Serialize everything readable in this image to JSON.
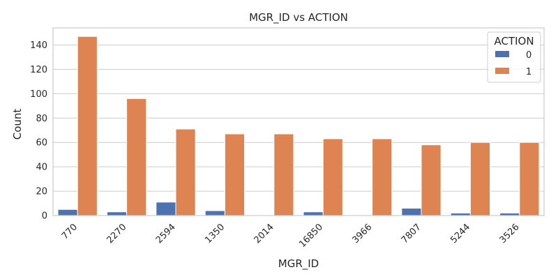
{
  "chart_data": {
    "type": "bar",
    "title": "MGR_ID vs ACTION",
    "xlabel": "MGR_ID",
    "ylabel": "Count",
    "categories": [
      "770",
      "2270",
      "2594",
      "1350",
      "2014",
      "16850",
      "3966",
      "7807",
      "5244",
      "3526"
    ],
    "series": [
      {
        "name": "0",
        "color": "#4c72b0",
        "values": [
          5,
          3,
          11,
          4,
          0,
          3,
          0,
          6,
          2,
          2
        ]
      },
      {
        "name": "1",
        "color": "#dd8452",
        "values": [
          147,
          96,
          71,
          67,
          67,
          63,
          63,
          58,
          60,
          60
        ]
      }
    ],
    "ylim": [
      0,
      154
    ],
    "yticks": [
      "0",
      "20",
      "40",
      "60",
      "80",
      "100",
      "120",
      "140"
    ],
    "grid": true,
    "legend": {
      "title": "ACTION",
      "placement": "top-right"
    }
  }
}
